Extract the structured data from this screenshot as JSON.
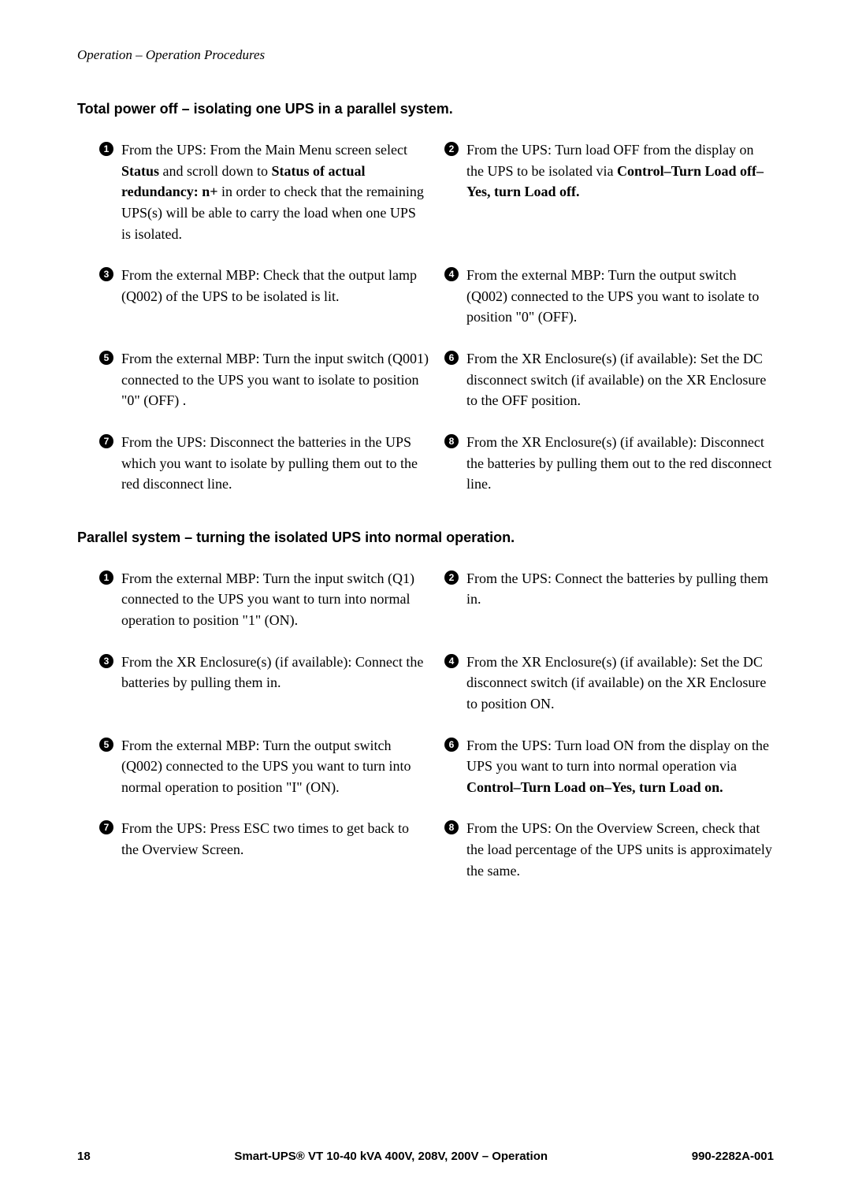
{
  "header": {
    "running": "Operation – Operation Procedures"
  },
  "sectionA": {
    "heading": "Total power off – isolating one UPS in a parallel system.",
    "steps": [
      {
        "n": "1",
        "html": "From the UPS: From the Main Menu screen select <b>Status</b> and scroll down to <b>Status of actual redundancy: n+</b> in order to check that the remaining UPS(s) will be able to carry the load when one UPS is isolated."
      },
      {
        "n": "2",
        "html": "From the UPS: Turn load <span class='sc'>OFF</span> from the display on the UPS to be isolated via <b>Control–Turn Load off–Yes, turn Load off.</b>"
      },
      {
        "n": "3",
        "html": "From the external MBP: Check that the output lamp (Q002) of the UPS to be isolated is lit."
      },
      {
        "n": "4",
        "html": "From the external MBP: Turn the output switch (Q002) connected to the UPS you want to isolate to position \"0\" (OFF)."
      },
      {
        "n": "5",
        "html": "From the external MBP: Turn the input switch (Q001) connected to the UPS you want to isolate to position \"0\" (OFF) ."
      },
      {
        "n": "6",
        "html": "From the XR Enclosure(s) (if available): Set the DC disconnect switch (if available) on the XR Enclosure to the <span class='sc'>OFF</span> position."
      },
      {
        "n": "7",
        "html": "From the UPS: Disconnect the batteries in the UPS which you want to isolate by pulling them out to the red disconnect line."
      },
      {
        "n": "8",
        "html": "From the XR Enclosure(s) (if available): Disconnect the batteries by pulling them out to the red disconnect line."
      }
    ]
  },
  "sectionB": {
    "heading": "Parallel system – turning the isolated UPS into normal operation.",
    "steps": [
      {
        "n": "1",
        "html": "From the external MBP: Turn the input switch (Q1) connected to the UPS you want to turn into normal operation to position \"1\" (ON)."
      },
      {
        "n": "2",
        "html": "From the UPS: Connect the batteries by pulling them in."
      },
      {
        "n": "3",
        "html": "From the XR Enclosure(s) (if available): Connect the batteries by pulling them in."
      },
      {
        "n": "4",
        "html": "From the XR Enclosure(s) (if available): Set the DC disconnect switch (if available) on the XR Enclosure to position <span class='sc'>ON</span>."
      },
      {
        "n": "5",
        "html": "From the external MBP: Turn the output switch (Q002) connected to the UPS you want to turn into normal operation to position \"I\" (ON)."
      },
      {
        "n": "6",
        "html": "From the UPS: Turn load <span class='sc'>ON</span> from the display on the UPS you want to turn into normal operation via <b>Control–Turn Load on–Yes, turn Load on.</b>"
      },
      {
        "n": "7",
        "html": "From the UPS: Press <span class='sc'>ESC</span> two times to get back to the Overview Screen."
      },
      {
        "n": "8",
        "html": "From the UPS: On the Overview Screen, check that the load percentage of the UPS units is approximately the same."
      }
    ]
  },
  "footer": {
    "page": "18",
    "center": "Smart-UPS® VT 10-40 kVA 400V, 208V, 200V – Operation",
    "right": "990-2282A-001"
  }
}
